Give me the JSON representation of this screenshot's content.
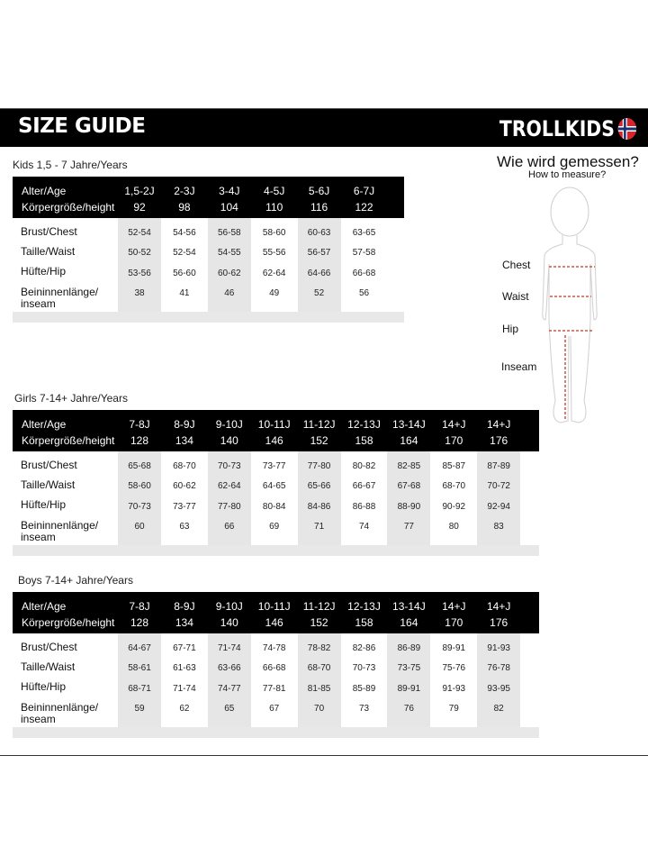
{
  "header": {
    "title": "SIZE GUIDE",
    "brand": "TROLLKIDS"
  },
  "measure": {
    "title": "Wie wird gemessen?",
    "subtitle": "How to measure?",
    "labels": {
      "chest": "Chest",
      "waist": "Waist",
      "hip": "Hip",
      "inseam": "Inseam"
    },
    "line_color": "#c0392b"
  },
  "row_labels": {
    "age": "Alter/Age",
    "height": "Körpergröße/height",
    "chest": "Brust/Chest",
    "waist": "Taille/Waist",
    "hip": "Hüfte/Hip",
    "inseam_1": "Beininnenlänge/",
    "inseam_2": "inseam"
  },
  "tables": [
    {
      "title": "Kids 1,5 - 7 Jahre/Years",
      "ages": [
        "1,5-2J",
        "2-3J",
        "3-4J",
        "4-5J",
        "5-6J",
        "6-7J"
      ],
      "heights": [
        "92",
        "98",
        "104",
        "110",
        "116",
        "122"
      ],
      "chest": [
        "52-54",
        "54-56",
        "56-58",
        "58-60",
        "60-63",
        "63-65"
      ],
      "waist": [
        "50-52",
        "52-54",
        "54-55",
        "55-56",
        "56-57",
        "57-58"
      ],
      "hip": [
        "53-56",
        "56-60",
        "60-62",
        "62-64",
        "64-66",
        "66-68"
      ],
      "inseam": [
        "38",
        "41",
        "46",
        "49",
        "52",
        "56"
      ]
    },
    {
      "title": "Girls 7-14+ Jahre/Years",
      "ages": [
        "7-8J",
        "8-9J",
        "9-10J",
        "10-11J",
        "11-12J",
        "12-13J",
        "13-14J",
        "14+J",
        "14+J"
      ],
      "heights": [
        "128",
        "134",
        "140",
        "146",
        "152",
        "158",
        "164",
        "170",
        "176"
      ],
      "chest": [
        "65-68",
        "68-70",
        "70-73",
        "73-77",
        "77-80",
        "80-82",
        "82-85",
        "85-87",
        "87-89"
      ],
      "waist": [
        "58-60",
        "60-62",
        "62-64",
        "64-65",
        "65-66",
        "66-67",
        "67-68",
        "68-70",
        "70-72"
      ],
      "hip": [
        "70-73",
        "73-77",
        "77-80",
        "80-84",
        "84-86",
        "86-88",
        "88-90",
        "90-92",
        "92-94"
      ],
      "inseam": [
        "60",
        "63",
        "66",
        "69",
        "71",
        "74",
        "77",
        "80",
        "83"
      ]
    },
    {
      "title": "Boys 7-14+ Jahre/Years",
      "ages": [
        "7-8J",
        "8-9J",
        "9-10J",
        "10-11J",
        "11-12J",
        "12-13J",
        "13-14J",
        "14+J",
        "14+J"
      ],
      "heights": [
        "128",
        "134",
        "140",
        "146",
        "152",
        "158",
        "164",
        "170",
        "176"
      ],
      "chest": [
        "64-67",
        "67-71",
        "71-74",
        "74-78",
        "78-82",
        "82-86",
        "86-89",
        "89-91",
        "91-93"
      ],
      "waist": [
        "58-61",
        "61-63",
        "63-66",
        "66-68",
        "68-70",
        "70-73",
        "73-75",
        "75-76",
        "76-78"
      ],
      "hip": [
        "68-71",
        "71-74",
        "74-77",
        "77-81",
        "81-85",
        "85-89",
        "89-91",
        "91-93",
        "93-95"
      ],
      "inseam": [
        "59",
        "62",
        "65",
        "67",
        "70",
        "73",
        "76",
        "79",
        "82"
      ]
    }
  ]
}
